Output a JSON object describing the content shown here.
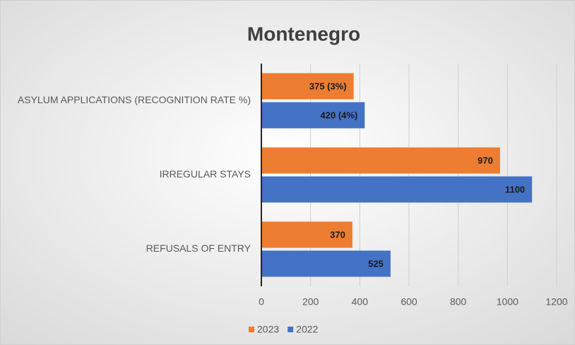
{
  "chart_data": {
    "type": "bar",
    "orientation": "horizontal",
    "title": "Montenegro",
    "categories": [
      "ASYLUM APPLICATIONS (RECOGNITION RATE %)",
      "IRREGULAR STAYS",
      "REFUSALS OF ENTRY"
    ],
    "series": [
      {
        "name": "2023",
        "color": "#ed7d31",
        "values": [
          375,
          970,
          370
        ],
        "value_labels": [
          "375 (3%)",
          "970",
          "370"
        ]
      },
      {
        "name": "2022",
        "color": "#4472c4",
        "values": [
          420,
          1100,
          525
        ],
        "value_labels": [
          "420 (4%)",
          "1100",
          "525"
        ]
      }
    ],
    "xlim": [
      0,
      1200
    ],
    "xticks": [
      0,
      200,
      400,
      600,
      800,
      1000,
      1200
    ],
    "grid": true,
    "legend": "bottom"
  }
}
